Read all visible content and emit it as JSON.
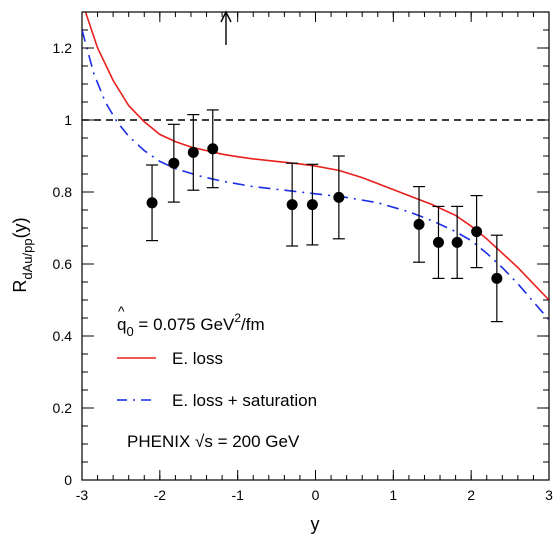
{
  "chart_data": {
    "type": "scatter",
    "xlabel": "y",
    "ylabel": "R",
    "ylabel_sub": "dAu/pp",
    "ylabel_suffix": "(y)",
    "xlim": [
      -3,
      3
    ],
    "ylim": [
      0,
      1.3
    ],
    "x_ticks": [
      -3,
      -2,
      -1,
      0,
      1,
      2,
      3
    ],
    "x_tick_labels": [
      "-3",
      "-2",
      "-1",
      "0",
      "1",
      "2",
      "3"
    ],
    "y_ticks": [
      0,
      0.2,
      0.4,
      0.6,
      0.8,
      1.0,
      1.2
    ],
    "y_tick_labels": [
      "0",
      "0.2",
      "0.4",
      "0.6",
      "0.8",
      "1",
      "1.2"
    ],
    "reference_line_y": 1.0,
    "arrow_x": -1.15,
    "annotation_qhat": {
      "prefix": "q",
      "sub": "0",
      "middle": " = 0.075 GeV",
      "sup": "2",
      "suffix": "/fm"
    },
    "annotation_phenix": "PHENIX √s = 200 GeV",
    "color_red": "#e8201c",
    "color_blue": "#1a2ee6",
    "series": [
      {
        "name": "PHENIX",
        "kind": "points",
        "x": [
          -2.1,
          -1.82,
          -1.57,
          -1.32,
          -0.3,
          -0.04,
          0.3,
          1.33,
          1.58,
          1.82,
          2.07,
          2.33
        ],
        "y": [
          0.77,
          0.88,
          0.91,
          0.92,
          0.765,
          0.765,
          0.785,
          0.71,
          0.66,
          0.66,
          0.69,
          0.56
        ],
        "err": [
          0.105,
          0.108,
          0.105,
          0.108,
          0.115,
          0.112,
          0.115,
          0.105,
          0.1,
          0.1,
          0.1,
          0.12
        ]
      },
      {
        "name": "E. loss",
        "kind": "line",
        "color": "#e8201c",
        "x": [
          -2.97,
          -2.8,
          -2.6,
          -2.4,
          -2.2,
          -2.0,
          -1.8,
          -1.6,
          -1.4,
          -1.2,
          -1.0,
          -0.8,
          -0.5,
          -0.2,
          0.0,
          0.3,
          0.6,
          0.9,
          1.2,
          1.5,
          1.8,
          2.0,
          2.2,
          2.4,
          2.6,
          2.8,
          3.0
        ],
        "y": [
          1.31,
          1.2,
          1.11,
          1.04,
          0.995,
          0.96,
          0.94,
          0.925,
          0.915,
          0.905,
          0.898,
          0.892,
          0.885,
          0.878,
          0.872,
          0.86,
          0.84,
          0.815,
          0.79,
          0.765,
          0.735,
          0.705,
          0.67,
          0.63,
          0.59,
          0.545,
          0.5
        ]
      },
      {
        "name": "E. loss + saturation",
        "kind": "dashed-line",
        "color": "#1a2ee6",
        "x": [
          -3.0,
          -2.85,
          -2.7,
          -2.55,
          -2.4,
          -2.2,
          -2.0,
          -1.8,
          -1.5,
          -1.2,
          -0.8,
          -0.4,
          0.0,
          0.4,
          0.8,
          1.2,
          1.5,
          1.8,
          2.0,
          2.2,
          2.4,
          2.6,
          2.8,
          3.0
        ],
        "y": [
          1.25,
          1.13,
          1.05,
          0.995,
          0.955,
          0.915,
          0.885,
          0.865,
          0.845,
          0.83,
          0.815,
          0.805,
          0.795,
          0.785,
          0.77,
          0.745,
          0.72,
          0.69,
          0.665,
          0.63,
          0.59,
          0.545,
          0.495,
          0.445
        ]
      }
    ]
  }
}
